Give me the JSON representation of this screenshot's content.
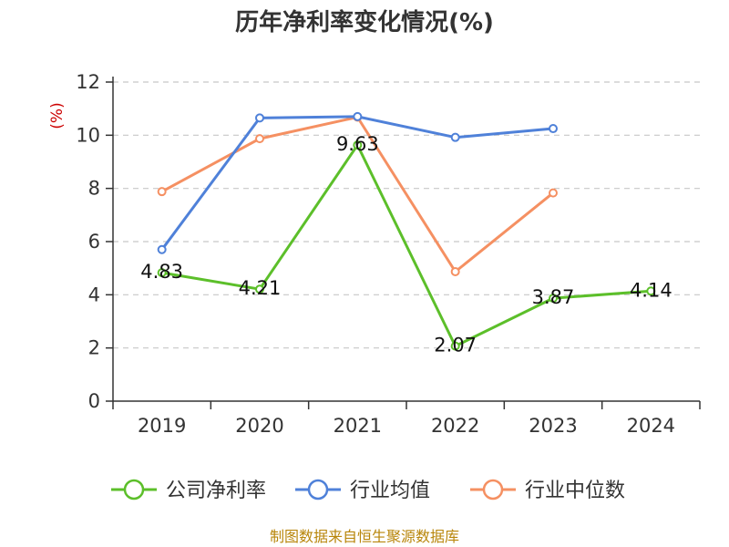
{
  "chart_data": {
    "type": "line",
    "title": "历年净利率变化情况(%)",
    "ylabel": "(%)",
    "categories": [
      "2019",
      "2020",
      "2021",
      "2022",
      "2023",
      "2024"
    ],
    "ylim": [
      0,
      12
    ],
    "yticks": [
      0,
      2,
      4,
      6,
      8,
      10,
      12
    ],
    "grid": true,
    "legend_position": "bottom",
    "series": [
      {
        "name": "公司净利率",
        "color": "#5cbf2a",
        "values": [
          4.83,
          4.21,
          9.63,
          2.07,
          3.87,
          4.14
        ],
        "labels": [
          "4.83",
          "4.21",
          "9.63",
          "2.07",
          "3.87",
          "4.14"
        ]
      },
      {
        "name": "行业均值",
        "color": "#4f81d9",
        "values": [
          5.7,
          10.65,
          10.7,
          9.92,
          10.25,
          null
        ]
      },
      {
        "name": "行业中位数",
        "color": "#f59062",
        "values": [
          7.88,
          9.87,
          10.68,
          4.87,
          7.83,
          null
        ]
      }
    ]
  },
  "source": "制图数据来自恒生聚源数据库"
}
